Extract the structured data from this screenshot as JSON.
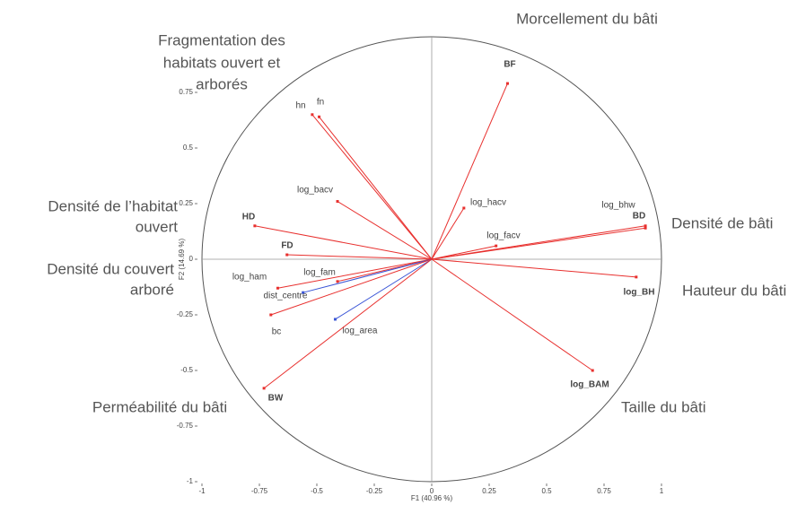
{
  "chart_data": {
    "type": "correlation-circle",
    "xlabel": "F1 (40.96 %)",
    "ylabel": "F2 (14.69 %)",
    "xlim": [
      -1,
      1
    ],
    "ylim": [
      -1,
      1
    ],
    "xticks": [
      -1,
      -0.75,
      -0.5,
      -0.25,
      0,
      0.25,
      0.5,
      0.75,
      1
    ],
    "yticks": [
      -1,
      -0.75,
      -0.5,
      -0.25,
      0,
      0.25,
      0.5,
      0.75
    ],
    "labels": [
      "BF",
      "hn",
      "fn",
      "log_bacv",
      "log_hacv",
      "log_bhw",
      "BD",
      "log_facv",
      "HD",
      "FD",
      "log_fam",
      "log_ham",
      "dist_centre",
      "bc",
      "log_area",
      "BW",
      "log_BH",
      "log_BAM"
    ],
    "x": [
      0.33,
      -0.52,
      -0.49,
      -0.41,
      0.14,
      0.93,
      0.93,
      0.28,
      -0.77,
      -0.63,
      -0.41,
      -0.67,
      -0.56,
      -0.7,
      -0.42,
      -0.73,
      0.89,
      0.7
    ],
    "y": [
      0.79,
      0.65,
      0.64,
      0.26,
      0.23,
      0.15,
      0.14,
      0.06,
      0.15,
      0.02,
      -0.1,
      -0.13,
      -0.15,
      -0.25,
      -0.27,
      -0.58,
      -0.08,
      -0.5
    ],
    "colors": [
      "#e8302e",
      "#e8302e",
      "#e8302e",
      "#e8302e",
      "#e8302e",
      "#e8302e",
      "#e8302e",
      "#e8302e",
      "#e8302e",
      "#e8302e",
      "#e8302e",
      "#e8302e",
      "#3a55d6",
      "#e8302e",
      "#3a55d6",
      "#e8302e",
      "#e8302e",
      "#e8302e"
    ],
    "bold": [
      true,
      false,
      false,
      false,
      false,
      false,
      true,
      false,
      true,
      true,
      false,
      false,
      false,
      false,
      false,
      true,
      true,
      true
    ],
    "annotations": [
      [
        "Morcellement du bâti"
      ],
      [
        "Fragmentation des",
        "habitats ouvert et",
        "arborés"
      ],
      [
        "Densité de l’habitat",
        "ouvert"
      ],
      [
        "Densité du couvert",
        "arboré"
      ],
      [
        "Perméabilité du bâti"
      ],
      [
        "Densité de bâti"
      ],
      [
        "Hauteur du bâti"
      ],
      [
        "Taille du bâti"
      ]
    ]
  }
}
